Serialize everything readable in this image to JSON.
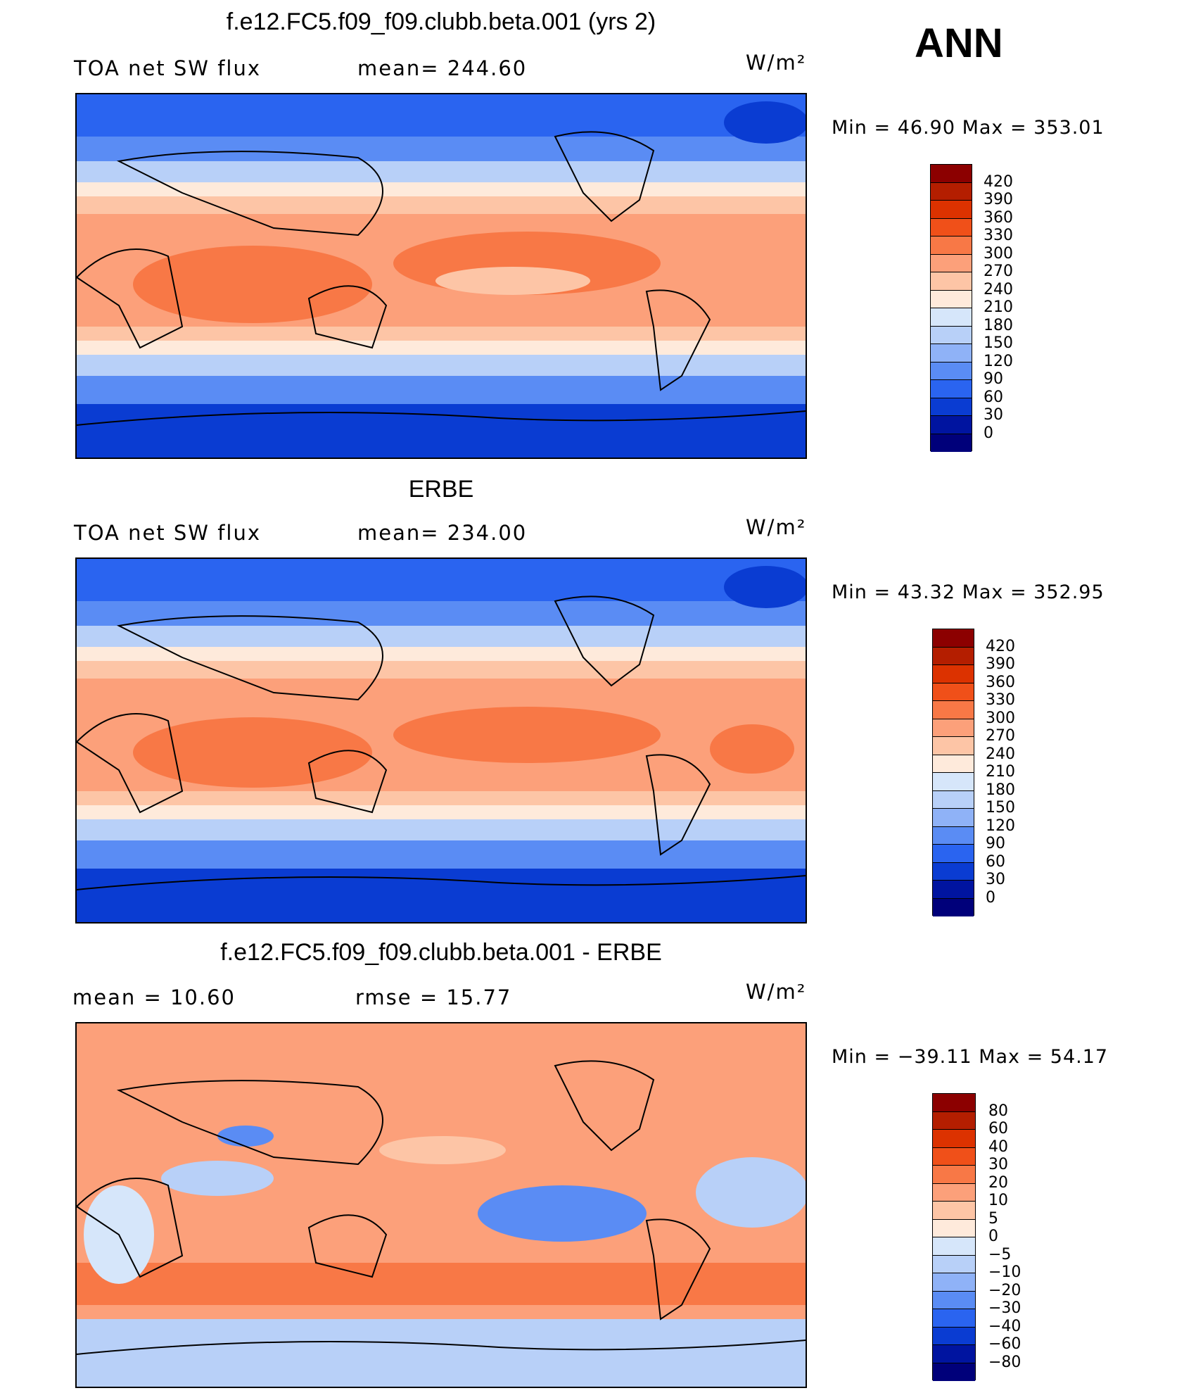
{
  "season": "ANN",
  "panels": [
    {
      "title": "f.e12.FC5.f09_f09.clubb.beta.001 (yrs 2)",
      "left_label": "TOA net SW flux",
      "mid_label": "mean= 244.60",
      "units": "W/m²",
      "minmax": "Min =   46.90 Max = 353.01",
      "levels": [
        "420",
        "390",
        "360",
        "330",
        "300",
        "270",
        "240",
        "210",
        "180",
        "150",
        "120",
        "90",
        "60",
        "30",
        "0"
      ],
      "colors": [
        "#8c0000",
        "#b41e00",
        "#dc3200",
        "#f05019",
        "#f87846",
        "#fca07a",
        "#fdc5a6",
        "#feeadb",
        "#d6e6fa",
        "#b8d0f8",
        "#8fb2f7",
        "#5a8cf4",
        "#2a64f0",
        "#0a3cd2",
        "#0014a0",
        "#00007a"
      ]
    },
    {
      "title": "ERBE",
      "left_label": "TOA net SW flux",
      "mid_label": "mean= 234.00",
      "units": "W/m²",
      "minmax": "Min =   43.32 Max = 352.95",
      "levels": [
        "420",
        "390",
        "360",
        "330",
        "300",
        "270",
        "240",
        "210",
        "180",
        "150",
        "120",
        "90",
        "60",
        "30",
        "0"
      ],
      "colors": [
        "#8c0000",
        "#b41e00",
        "#dc3200",
        "#f05019",
        "#f87846",
        "#fca07a",
        "#fdc5a6",
        "#feeadb",
        "#d6e6fa",
        "#b8d0f8",
        "#8fb2f7",
        "#5a8cf4",
        "#2a64f0",
        "#0a3cd2",
        "#0014a0",
        "#00007a"
      ]
    },
    {
      "title": "f.e12.FC5.f09_f09.clubb.beta.001 - ERBE",
      "left_label": "mean =   10.60",
      "mid_label": "rmse =   15.77",
      "units": "W/m²",
      "minmax": "Min = −39.11 Max =   54.17",
      "levels": [
        "80",
        "60",
        "40",
        "30",
        "20",
        "10",
        "5",
        "0",
        "−5",
        "−10",
        "−20",
        "−30",
        "−40",
        "−60",
        "−80"
      ],
      "colors": [
        "#8c0000",
        "#b41e00",
        "#dc3200",
        "#f05019",
        "#f87846",
        "#fca07a",
        "#fdc5a6",
        "#feeadb",
        "#d6e6fa",
        "#b8d0f8",
        "#8fb2f7",
        "#5a8cf4",
        "#2a64f0",
        "#0a3cd2",
        "#0014a0",
        "#00007a"
      ]
    }
  ]
}
